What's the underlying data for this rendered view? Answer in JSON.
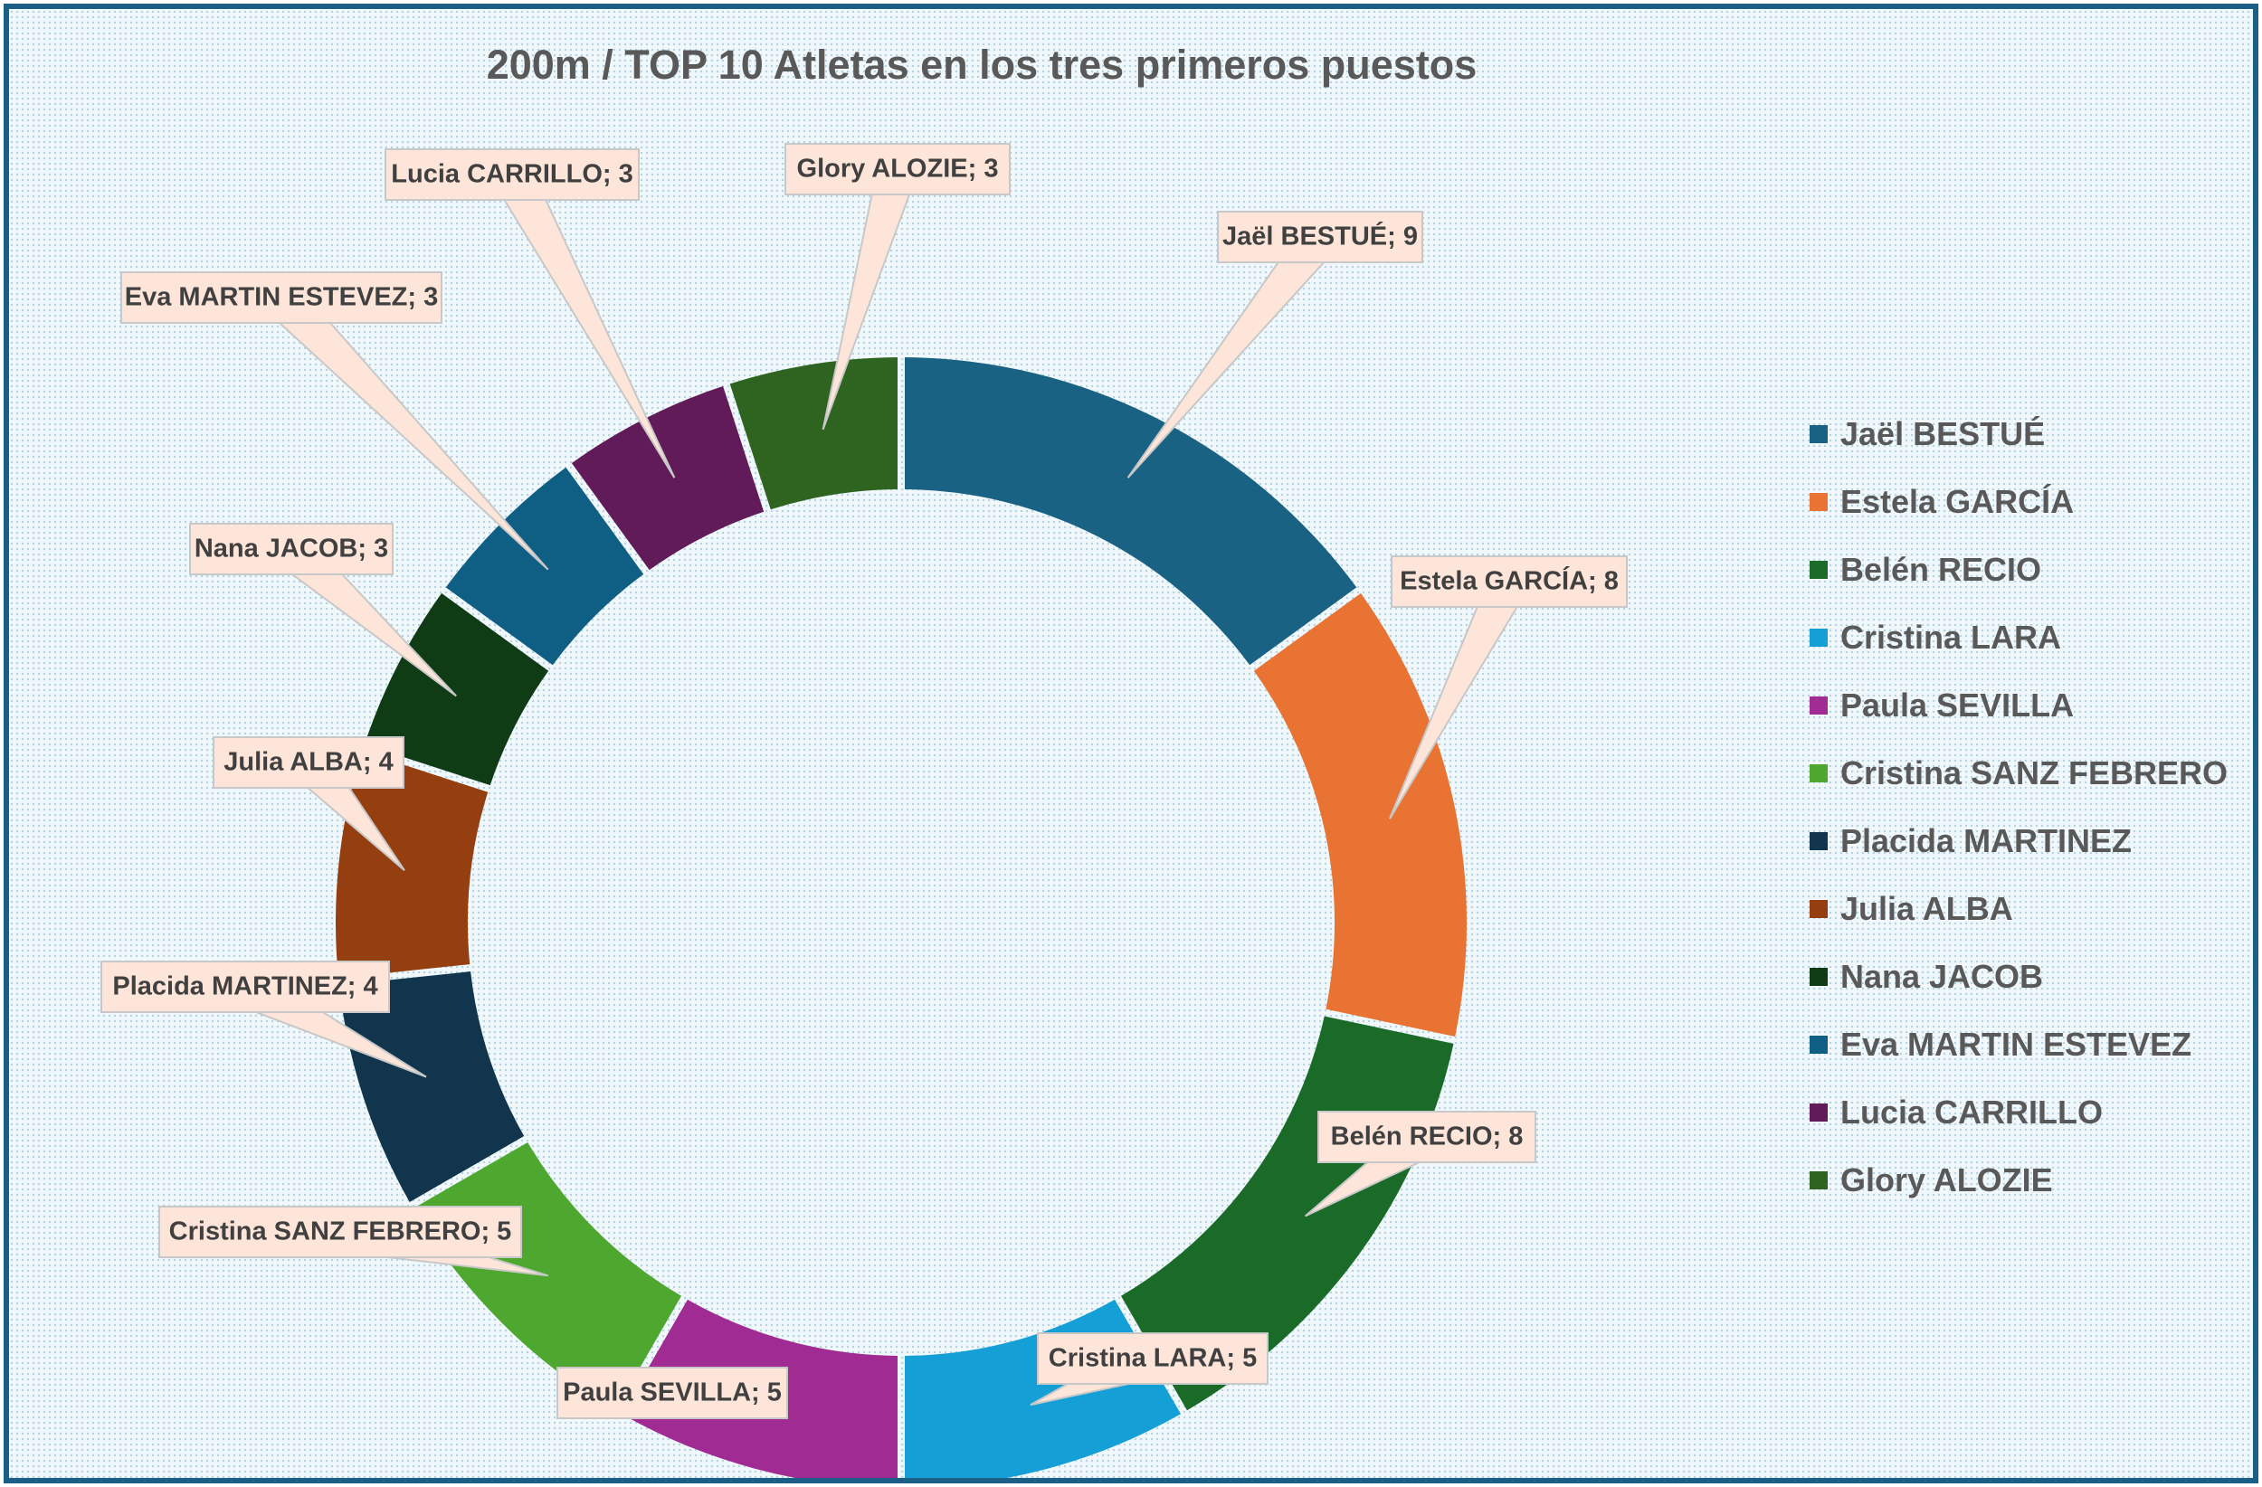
{
  "chart_data": {
    "type": "pie",
    "title": "200m / TOP 10 Atletas en los tres primeros puestos",
    "legend_position": "right",
    "categories": [
      "Jaël BESTUÉ",
      "Estela GARCÍA",
      "Belén RECIO",
      "Cristina LARA",
      "Paula SEVILLA",
      "Cristina SANZ FEBRERO",
      "Placida MARTINEZ",
      "Julia ALBA",
      "Nana JACOB",
      "Eva MARTIN ESTEVEZ",
      "Lucia CARRILLO",
      "Glory ALOZIE"
    ],
    "values": [
      9,
      8,
      8,
      5,
      5,
      5,
      4,
      4,
      3,
      3,
      3,
      3
    ],
    "data_labels": [
      "Jaël BESTUÉ; 9",
      "Estela GARCÍA; 8",
      "Belén RECIO; 8",
      "Cristina LARA; 5",
      "Paula SEVILLA; 5",
      "Cristina SANZ FEBRERO; 5",
      "Placida MARTINEZ; 4",
      "Julia ALBA; 4",
      "Nana JACOB; 3",
      "Eva MARTIN ESTEVEZ; 3",
      "Lucia CARRILLO; 3",
      "Glory ALOZIE; 3"
    ],
    "colors": [
      "#1a6283",
      "#e97332",
      "#1a6b28",
      "#14a0d6",
      "#a02b93",
      "#4ea72e",
      "#10354c",
      "#953f11",
      "#0f3b15",
      "#0f5f85",
      "#611b58",
      "#2e6420"
    ]
  }
}
